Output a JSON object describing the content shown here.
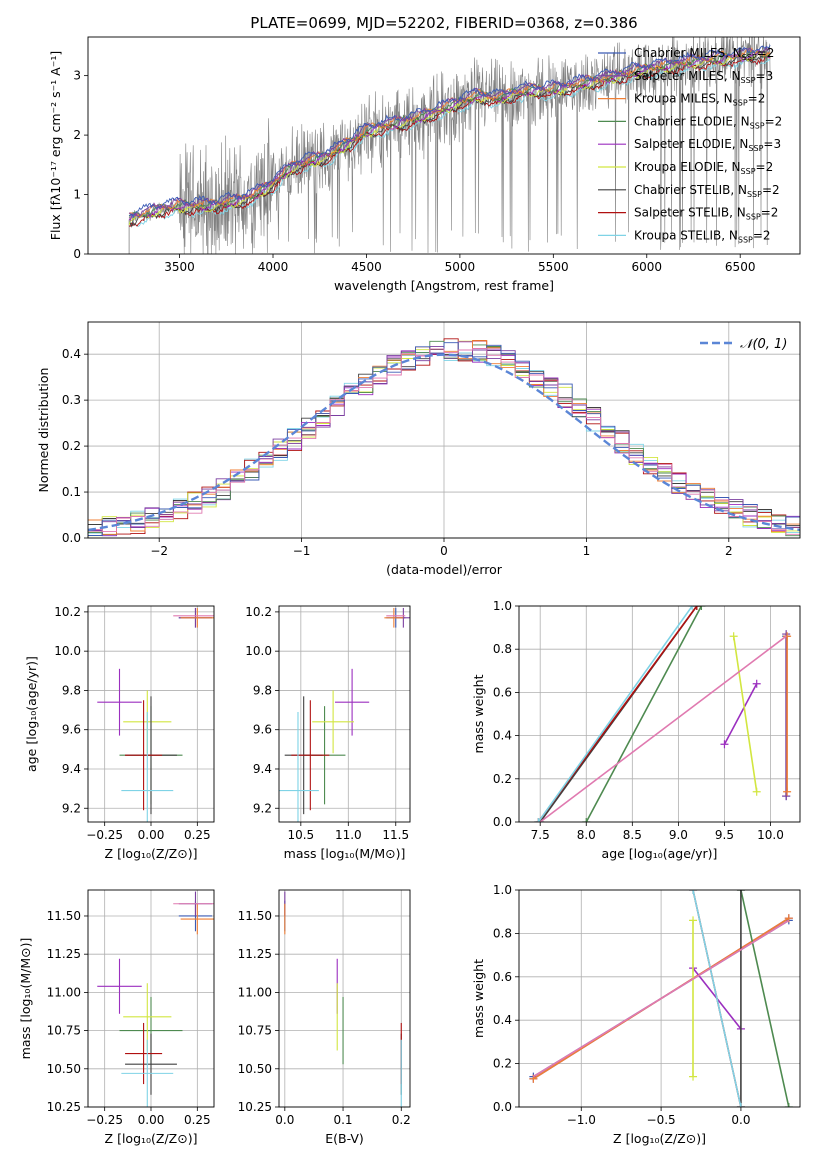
{
  "figure": {
    "title": "PLATE=0699, MJD=52202, FIBERID=0368, z=0.386"
  },
  "colors": {
    "Chabrier MILES": "#3b5bb5",
    "Salpeter MILES": "#7b3fa0",
    "Kroupa MILES": "#ef7f35",
    "Chabrier ELODIE": "#4e8a50",
    "Salpeter ELODIE": "#9b2fbf",
    "Kroupa ELODIE": "#d2e640",
    "Chabrier STELIB": "#404040",
    "Salpeter STELIB": "#b01010",
    "Kroupa STELIB": "#7fd3e6",
    "data": "#808080",
    "normal": "#5b86d6",
    "extra_pink": "#e07ab0"
  },
  "chart_data": [
    {
      "type": "line",
      "name": "spectrum",
      "xlabel": "wavelength [Angstrom, rest frame]",
      "ylabel": "Flux [fλ10⁻¹⁷ erg cm⁻² s⁻¹ A⁻¹]",
      "xlim": [
        3010,
        6820
      ],
      "ylim": [
        0,
        3.65
      ],
      "xticks": [
        "3500",
        "4000",
        "4500",
        "5000",
        "5500",
        "6000",
        "6500"
      ],
      "yticks": [
        "0",
        "1",
        "2",
        "3"
      ],
      "grid": false,
      "legend_position": "top-right",
      "legend": [
        "Chabrier MILES, N_SSP=2",
        "Salpeter MILES, N_SSP=3",
        "Kroupa MILES, N_SSP=2",
        "Chabrier ELODIE, N_SSP=2",
        "Salpeter ELODIE, N_SSP=3",
        "Kroupa ELODIE, N_SSP=2",
        "Chabrier STELIB, N_SSP=2",
        "Salpeter STELIB, N_SSP=2",
        "Kroupa STELIB, N_SSP=2"
      ],
      "model_continuum": {
        "x": [
          3230,
          3400,
          3500,
          3600,
          3700,
          3800,
          3900,
          4000,
          4100,
          4200,
          4300,
          4400,
          4500,
          4600,
          4700,
          4800,
          4900,
          5000,
          5100,
          5200,
          5300,
          5400,
          5500,
          5600,
          5800,
          6000,
          6200,
          6400,
          6600
        ],
        "y": [
          0.58,
          0.75,
          0.8,
          0.8,
          0.82,
          0.88,
          0.98,
          1.18,
          1.45,
          1.55,
          1.65,
          1.85,
          2.05,
          2.15,
          2.22,
          2.3,
          2.42,
          2.55,
          2.65,
          2.6,
          2.7,
          2.75,
          2.75,
          2.82,
          2.95,
          3.1,
          3.2,
          3.28,
          3.35
        ]
      }
    },
    {
      "type": "histogram",
      "name": "residuals",
      "xlabel": "(data-model)/error",
      "ylabel": "Normed distribution",
      "xlim": [
        -2.5,
        2.5
      ],
      "ylim": [
        0,
        0.47
      ],
      "xticks": [
        "−2",
        "−1",
        "0",
        "1",
        "2"
      ],
      "yticks": [
        "0.0",
        "0.1",
        "0.2",
        "0.3",
        "0.4"
      ],
      "grid": true,
      "legend_position": "top-right",
      "legend": [
        "𝒩(0, 1)"
      ],
      "bin_width": 0.1,
      "bin_start": -2.5,
      "reference_curve": "normal(0,1)"
    },
    {
      "type": "scatter",
      "name": "age_vs_Z",
      "xlabel": "Z [log₁₀(Z/Z⊙)]",
      "ylabel": "age  [log₁₀(age/yr)]",
      "xlim": [
        -0.34,
        0.34
      ],
      "ylim": [
        9.13,
        10.23
      ],
      "xticks": [
        "−0.25",
        "0.00",
        "0.25"
      ],
      "yticks": [
        "9.2",
        "9.4",
        "9.6",
        "9.8",
        "10.0",
        "10.2"
      ],
      "grid": true
    },
    {
      "type": "scatter",
      "name": "age_vs_mass",
      "xlabel": "mass [log₁₀(M/M⊙)]",
      "xlim": [
        10.27,
        11.65
      ],
      "ylim": [
        9.13,
        10.23
      ],
      "xticks": [
        "10.5",
        "11.0",
        "11.5"
      ],
      "yticks": [
        "9.2",
        "9.4",
        "9.6",
        "9.8",
        "10.0",
        "10.2"
      ],
      "grid": true
    },
    {
      "type": "line",
      "name": "massweight_vs_age",
      "xlabel": "age  [log₁₀(age/yr)]",
      "ylabel": "mass weight",
      "xlim": [
        7.27,
        10.32
      ],
      "ylim": [
        0,
        1
      ],
      "xticks": [
        "7.5",
        "8.0",
        "8.5",
        "9.0",
        "9.5",
        "10.0"
      ],
      "yticks": [
        "0.0",
        "0.2",
        "0.4",
        "0.6",
        "0.8",
        "1.0"
      ],
      "grid": true
    },
    {
      "type": "scatter",
      "name": "mass_vs_Z",
      "xlabel": "Z [log₁₀(Z/Z⊙)]",
      "ylabel": "mass [log₁₀(M/M⊙)]",
      "xlim": [
        -0.34,
        0.34
      ],
      "ylim": [
        10.25,
        11.67
      ],
      "xticks": [
        "−0.25",
        "0.00",
        "0.25"
      ],
      "yticks": [
        "10.25",
        "10.50",
        "10.75",
        "11.00",
        "11.25",
        "11.50"
      ],
      "grid": true
    },
    {
      "type": "scatter",
      "name": "mass_vs_ebv",
      "xlabel": "E(B-V)",
      "xlim": [
        -0.01,
        0.215
      ],
      "ylim": [
        10.25,
        11.67
      ],
      "xticks": [
        "0.0",
        "0.1",
        "0.2"
      ],
      "yticks": [
        "10.25",
        "10.50",
        "10.75",
        "11.00",
        "11.25",
        "11.50"
      ],
      "grid": true
    },
    {
      "type": "line",
      "name": "massweight_vs_Z",
      "xlabel": "Z [log₁₀(Z/Z⊙)]",
      "ylabel": "mass weight",
      "xlim": [
        -1.39,
        0.37
      ],
      "ylim": [
        0,
        1
      ],
      "xticks": [
        "−1.0",
        "−0.5",
        "0.0"
      ],
      "yticks": [
        "0.0",
        "0.2",
        "0.4",
        "0.6",
        "0.8",
        "1.0"
      ],
      "grid": true
    }
  ],
  "models": [
    {
      "key": "Chabrier MILES",
      "Z": 0.24,
      "Zerr": 0.09,
      "age": 10.17,
      "ageerr": 0.05,
      "mass": 11.5,
      "masserr": 0.1,
      "ebv": 0.0,
      "weights_age": [
        [
          10.17,
          0.12
        ],
        [
          10.17,
          0.86
        ]
      ],
      "weights_Z": [
        [
          0.3,
          0.86
        ],
        [
          -1.3,
          0.14
        ]
      ]
    },
    {
      "key": "Salpeter MILES",
      "Z": 0.24,
      "Zerr": 0.09,
      "age": 10.17,
      "ageerr": 0.05,
      "mass": 11.58,
      "masserr": 0.08,
      "ebv": 0.0,
      "weights_age": [
        [
          10.17,
          0.12
        ],
        [
          10.17,
          0.87
        ]
      ],
      "weights_Z": [
        [
          0.3,
          0.87
        ],
        [
          -1.3,
          0.13
        ]
      ]
    },
    {
      "key": "Kroupa MILES",
      "Z": 0.25,
      "Zerr": 0.09,
      "age": 10.17,
      "ageerr": 0.05,
      "mass": 11.48,
      "masserr": 0.1,
      "ebv": 0.0,
      "weights_age": [
        [
          10.18,
          0.14
        ],
        [
          10.18,
          0.86
        ]
      ],
      "weights_Z": [
        [
          0.3,
          0.87
        ],
        [
          -1.3,
          0.13
        ]
      ]
    },
    {
      "key": "Chabrier ELODIE",
      "Z": 0.0,
      "Zerr": 0.17,
      "age": 9.47,
      "ageerr": 0.25,
      "mass": 10.75,
      "masserr": 0.22,
      "ebv": 0.1,
      "weights_age": [
        [
          8.0,
          0.0
        ],
        [
          9.25,
          1.0
        ]
      ],
      "weights_Z": [
        [
          0.0,
          1.0
        ],
        [
          0.3,
          0.0
        ]
      ]
    },
    {
      "key": "Salpeter ELODIE",
      "Z": -0.17,
      "Zerr": 0.12,
      "age": 9.74,
      "ageerr": 0.17,
      "mass": 11.04,
      "masserr": 0.18,
      "ebv": 0.09,
      "weights_age": [
        [
          9.5,
          0.36
        ],
        [
          9.85,
          0.64
        ]
      ],
      "weights_Z": [
        [
          -0.3,
          0.64
        ],
        [
          0.0,
          0.36
        ]
      ]
    },
    {
      "key": "Kroupa ELODIE",
      "Z": -0.02,
      "Zerr": 0.13,
      "age": 9.64,
      "ageerr": 0.16,
      "mass": 10.84,
      "masserr": 0.22,
      "ebv": 0.09,
      "weights_age": [
        [
          9.6,
          0.86
        ],
        [
          9.85,
          0.14
        ]
      ],
      "weights_Z": [
        [
          -0.3,
          0.86
        ],
        [
          -0.3,
          0.14
        ]
      ]
    },
    {
      "key": "Chabrier STELIB",
      "Z": 0.0,
      "Zerr": 0.14,
      "age": 9.47,
      "ageerr": 0.3,
      "mass": 10.53,
      "masserr": 0.2,
      "ebv": 0.2,
      "weights_age": [
        [
          7.5,
          0.0
        ],
        [
          9.2,
          1.0
        ]
      ],
      "weights_Z": [
        [
          0.0,
          0.0
        ],
        [
          0.0,
          1.0
        ]
      ]
    },
    {
      "key": "Salpeter STELIB",
      "Z": -0.04,
      "Zerr": 0.1,
      "age": 9.47,
      "ageerr": 0.28,
      "mass": 10.6,
      "masserr": 0.2,
      "ebv": 0.2,
      "weights_age": [
        [
          7.48,
          0.0
        ],
        [
          9.2,
          1.0
        ]
      ],
      "weights_Z": [
        [
          -0.3,
          1.0
        ],
        [
          0.0,
          0.0
        ]
      ]
    },
    {
      "key": "Kroupa STELIB",
      "Z": -0.02,
      "Zerr": 0.14,
      "age": 9.29,
      "ageerr": 0.4,
      "mass": 10.47,
      "masserr": 0.22,
      "ebv": 0.2,
      "weights_age": [
        [
          7.48,
          0.0
        ],
        [
          9.15,
          1.0
        ]
      ],
      "weights_Z": [
        [
          -0.3,
          1.0
        ],
        [
          0.0,
          0.0
        ]
      ]
    }
  ],
  "extra_pink_weights": {
    "age": [
      [
        7.5,
        0.0
      ],
      [
        10.17,
        0.86
      ]
    ],
    "Z": [
      [
        -1.3,
        0.14
      ],
      [
        0.3,
        0.86
      ]
    ]
  }
}
